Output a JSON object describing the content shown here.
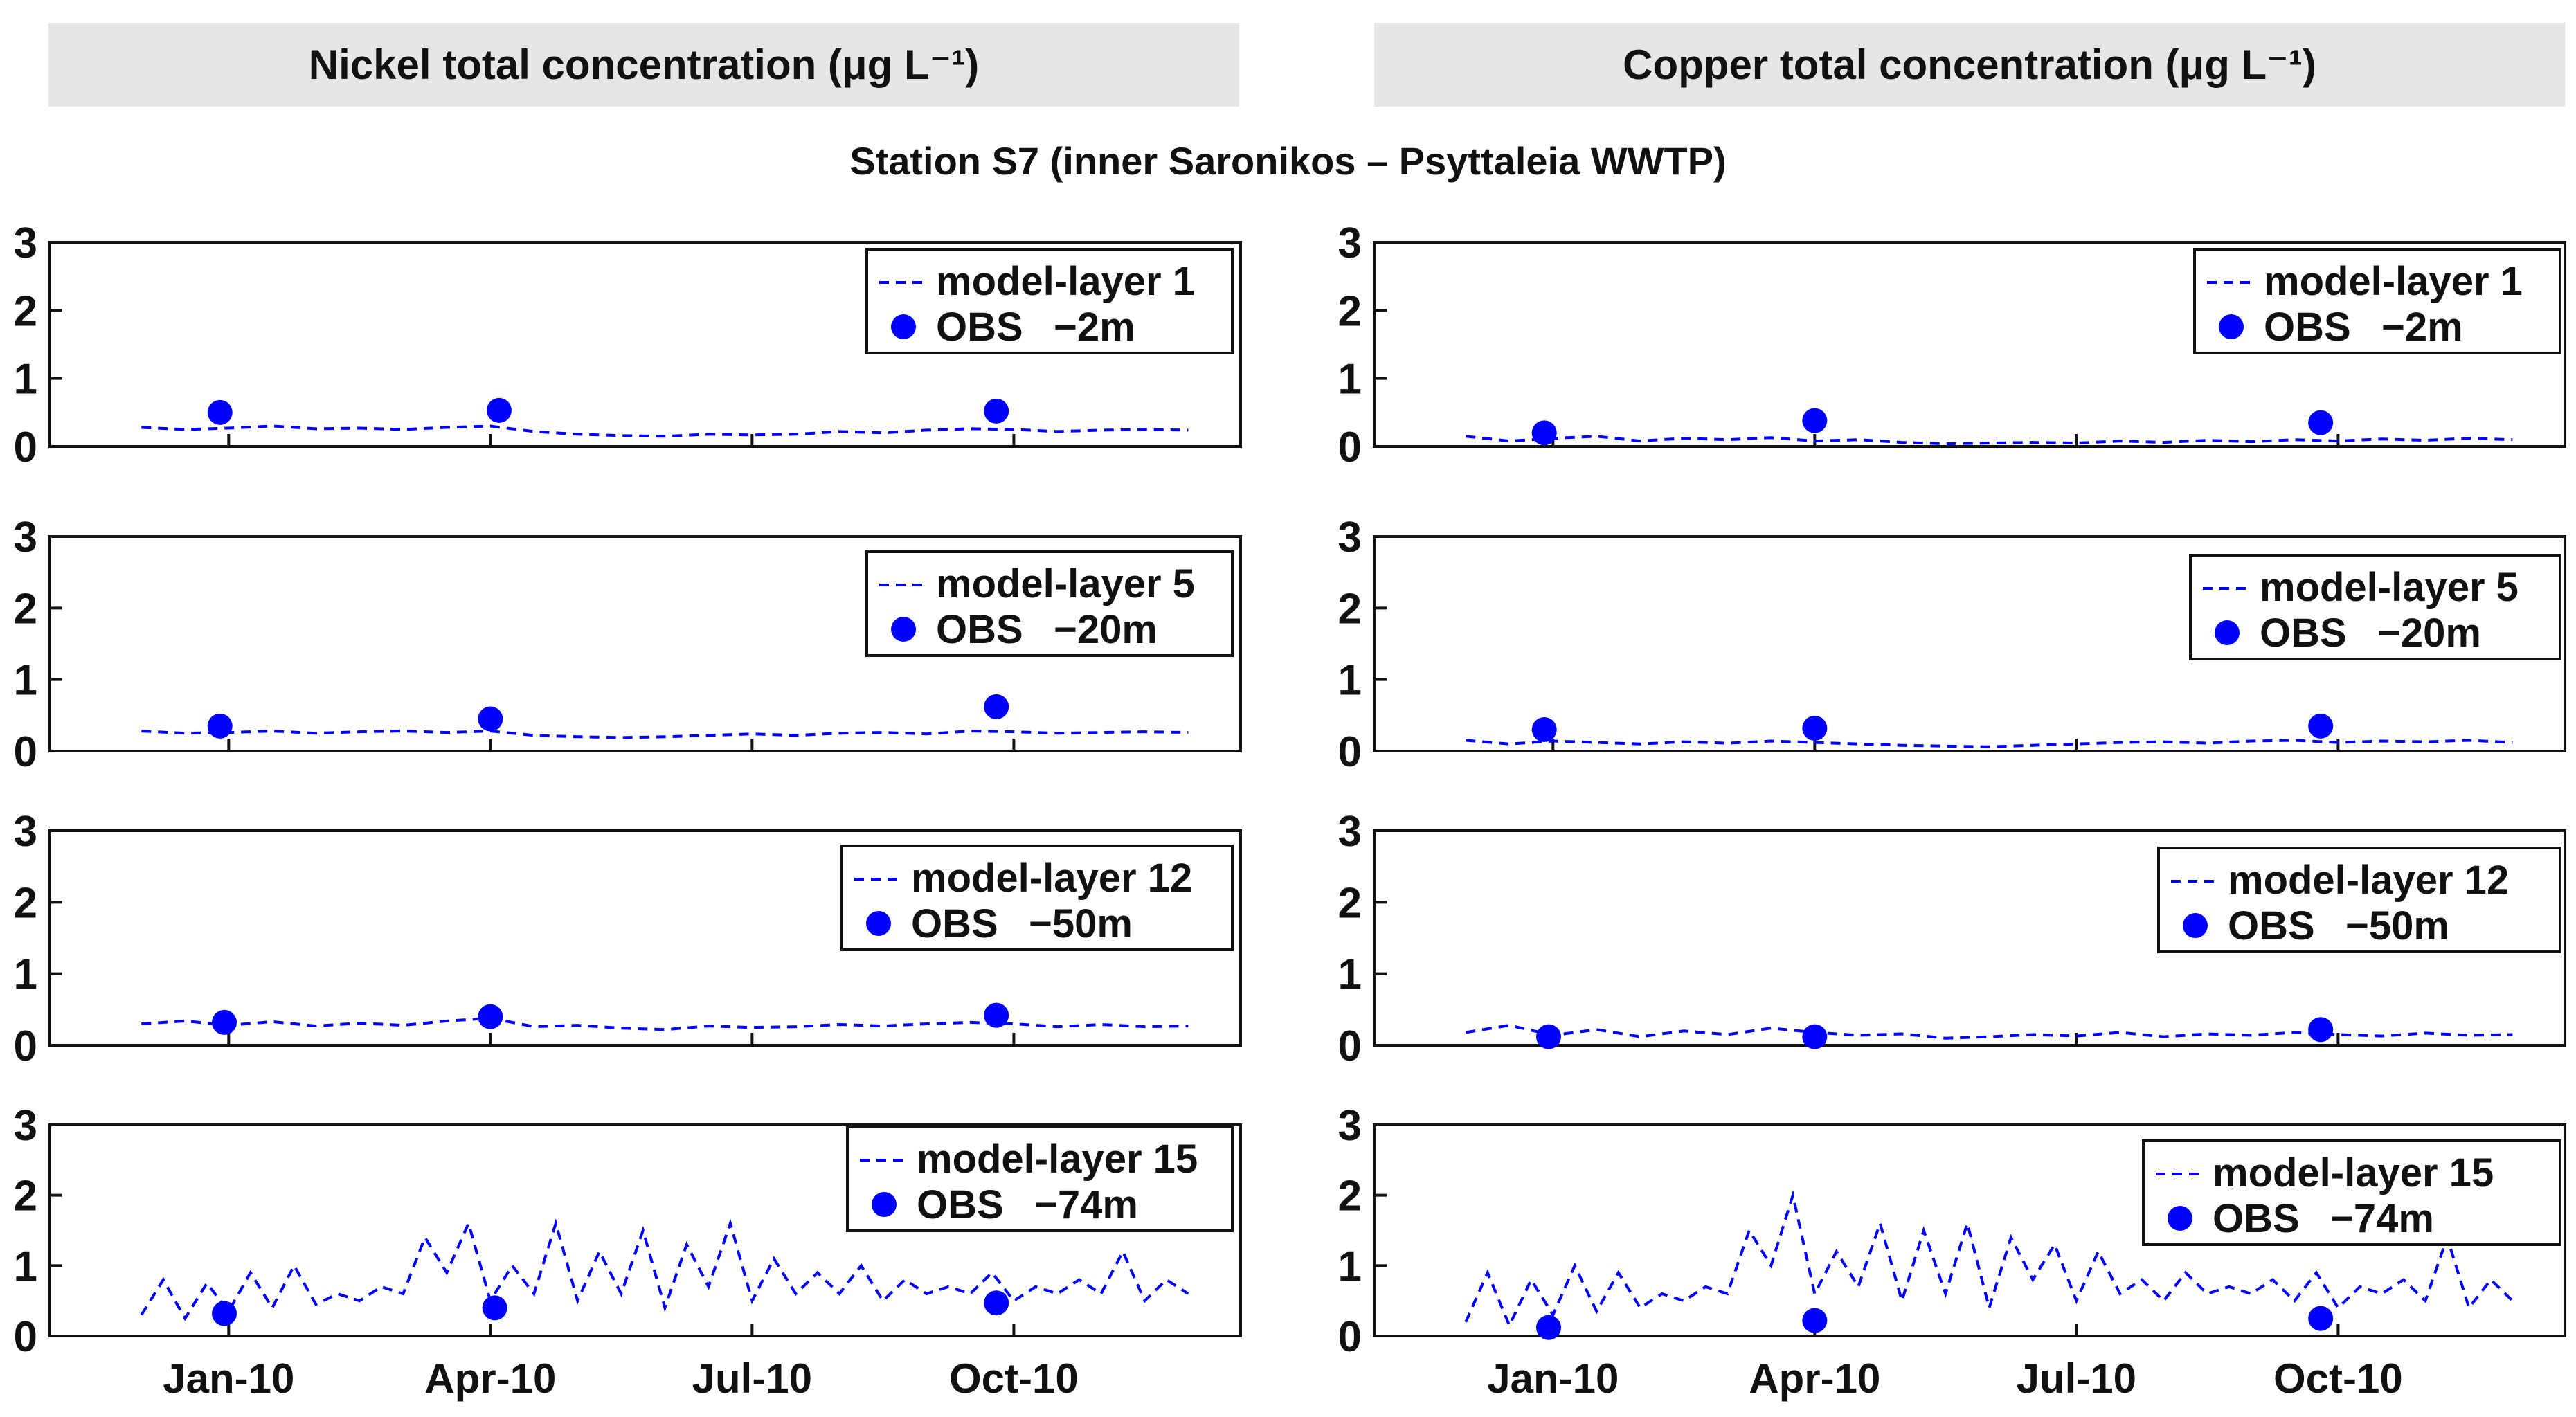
{
  "headers": {
    "left": "Nickel total concentration (μg L⁻¹)",
    "right": "Copper total concentration (μg L⁻¹)"
  },
  "station_title": "Station S7 (inner Saronikos – Psyttaleia WWTP)",
  "colors": {
    "series": "#0000ff",
    "axis": "#111111",
    "header_bg": "#e6e6e6"
  },
  "chart_data": [
    {
      "type": "line",
      "title": "Nickel – model-layer 1",
      "metal": "Nickel",
      "ylim": [
        0,
        3
      ],
      "yticks": [
        0,
        1,
        2,
        3
      ],
      "xlim": [
        -2.05,
        11.6
      ],
      "xticks": [
        0,
        3,
        6,
        9
      ],
      "xticklabels": [
        "Jan-10",
        "Apr-10",
        "Jul-10",
        "Oct-10"
      ],
      "legend": {
        "position": "top-right",
        "line_label": "model-layer 1",
        "obs_label": "OBS",
        "obs_depth": "−2m"
      },
      "model": {
        "x": [
          -1.0,
          -0.5,
          0.0,
          0.5,
          1.0,
          1.5,
          2.0,
          2.5,
          3.0,
          3.5,
          4.0,
          4.5,
          5.0,
          5.5,
          6.0,
          6.5,
          7.0,
          7.5,
          8.0,
          8.5,
          9.0,
          9.5,
          10.0,
          10.5,
          11.0
        ],
        "y": [
          0.28,
          0.25,
          0.27,
          0.3,
          0.26,
          0.27,
          0.25,
          0.28,
          0.3,
          0.22,
          0.18,
          0.16,
          0.15,
          0.18,
          0.17,
          0.18,
          0.22,
          0.2,
          0.24,
          0.26,
          0.25,
          0.22,
          0.24,
          0.25,
          0.24
        ]
      },
      "observations": {
        "x": [
          -0.1,
          3.1,
          8.8
        ],
        "y": [
          0.5,
          0.53,
          0.52
        ]
      }
    },
    {
      "type": "line",
      "title": "Nickel – model-layer 5",
      "metal": "Nickel",
      "ylim": [
        0,
        3
      ],
      "yticks": [
        0,
        1,
        2,
        3
      ],
      "xlim": [
        -2.05,
        11.6
      ],
      "xticks": [
        0,
        3,
        6,
        9
      ],
      "xticklabels": [
        "Jan-10",
        "Apr-10",
        "Jul-10",
        "Oct-10"
      ],
      "legend": {
        "position": "top-right",
        "line_label": "model-layer 5",
        "obs_label": "OBS",
        "obs_depth": "−20m"
      },
      "model": {
        "x": [
          -1.0,
          -0.5,
          0.0,
          0.5,
          1.0,
          1.5,
          2.0,
          2.5,
          3.0,
          3.5,
          4.0,
          4.5,
          5.0,
          5.5,
          6.0,
          6.5,
          7.0,
          7.5,
          8.0,
          8.5,
          9.0,
          9.5,
          10.0,
          10.5,
          11.0
        ],
        "y": [
          0.28,
          0.25,
          0.26,
          0.28,
          0.25,
          0.27,
          0.28,
          0.26,
          0.28,
          0.22,
          0.2,
          0.19,
          0.2,
          0.22,
          0.24,
          0.22,
          0.25,
          0.26,
          0.24,
          0.28,
          0.27,
          0.25,
          0.26,
          0.27,
          0.26
        ]
      },
      "observations": {
        "x": [
          -0.1,
          3.0,
          8.8
        ],
        "y": [
          0.35,
          0.45,
          0.62
        ]
      }
    },
    {
      "type": "line",
      "title": "Nickel – model-layer 12",
      "metal": "Nickel",
      "ylim": [
        0,
        3
      ],
      "yticks": [
        0,
        1,
        2,
        3
      ],
      "xlim": [
        -2.05,
        11.6
      ],
      "xticks": [
        0,
        3,
        6,
        9
      ],
      "xticklabels": [
        "Jan-10",
        "Apr-10",
        "Jul-10",
        "Oct-10"
      ],
      "legend": {
        "position": "top-right",
        "line_label": "model-layer 12",
        "obs_label": "OBS",
        "obs_depth": "−50m"
      },
      "model": {
        "x": [
          -1.0,
          -0.5,
          0.0,
          0.5,
          1.0,
          1.5,
          2.0,
          2.5,
          3.0,
          3.5,
          4.0,
          4.5,
          5.0,
          5.5,
          6.0,
          6.5,
          7.0,
          7.5,
          8.0,
          8.5,
          9.0,
          9.5,
          10.0,
          10.5,
          11.0
        ],
        "y": [
          0.3,
          0.34,
          0.28,
          0.33,
          0.27,
          0.31,
          0.28,
          0.34,
          0.38,
          0.26,
          0.28,
          0.24,
          0.22,
          0.27,
          0.25,
          0.26,
          0.29,
          0.27,
          0.3,
          0.32,
          0.3,
          0.26,
          0.29,
          0.26,
          0.27
        ]
      },
      "observations": {
        "x": [
          -0.05,
          3.0,
          8.8
        ],
        "y": [
          0.32,
          0.4,
          0.42
        ]
      }
    },
    {
      "type": "line",
      "title": "Nickel – model-layer 15",
      "metal": "Nickel",
      "ylim": [
        0,
        3
      ],
      "yticks": [
        0,
        1,
        2,
        3
      ],
      "xlim": [
        -2.05,
        11.6
      ],
      "xticks": [
        0,
        3,
        6,
        9
      ],
      "xticklabels": [
        "Jan-10",
        "Apr-10",
        "Jul-10",
        "Oct-10"
      ],
      "legend": {
        "position": "top-right",
        "line_label": "model-layer 15",
        "obs_label": "OBS",
        "obs_depth": "−74m"
      },
      "model": {
        "x": [
          -1.0,
          -0.75,
          -0.5,
          -0.25,
          0.0,
          0.25,
          0.5,
          0.75,
          1.0,
          1.25,
          1.5,
          1.75,
          2.0,
          2.25,
          2.5,
          2.75,
          3.0,
          3.25,
          3.5,
          3.75,
          4.0,
          4.25,
          4.5,
          4.75,
          5.0,
          5.25,
          5.5,
          5.75,
          6.0,
          6.25,
          6.5,
          6.75,
          7.0,
          7.25,
          7.5,
          7.75,
          8.0,
          8.25,
          8.5,
          8.75,
          9.0,
          9.25,
          9.5,
          9.75,
          10.0,
          10.25,
          10.5,
          10.75,
          11.0
        ],
        "y": [
          0.3,
          0.8,
          0.25,
          0.75,
          0.35,
          0.9,
          0.4,
          1.0,
          0.45,
          0.6,
          0.5,
          0.7,
          0.6,
          1.4,
          0.9,
          1.6,
          0.5,
          1.0,
          0.6,
          1.6,
          0.5,
          1.2,
          0.6,
          1.5,
          0.4,
          1.3,
          0.7,
          1.6,
          0.5,
          1.1,
          0.6,
          0.9,
          0.6,
          1.0,
          0.5,
          0.8,
          0.6,
          0.7,
          0.6,
          0.9,
          0.5,
          0.7,
          0.6,
          0.8,
          0.6,
          1.2,
          0.5,
          0.8,
          0.6
        ]
      },
      "observations": {
        "x": [
          -0.05,
          3.05,
          8.8
        ],
        "y": [
          0.32,
          0.4,
          0.47
        ]
      }
    },
    {
      "type": "line",
      "title": "Copper – model-layer 1",
      "metal": "Copper",
      "ylim": [
        0,
        3
      ],
      "yticks": [
        0,
        1,
        2,
        3
      ],
      "xlim": [
        -2.05,
        11.6
      ],
      "xticks": [
        0,
        3,
        6,
        9
      ],
      "xticklabels": [
        "Jan-10",
        "Apr-10",
        "Jul-10",
        "Oct-10"
      ],
      "legend": {
        "position": "top-right",
        "line_label": "model-layer 1",
        "obs_label": "OBS",
        "obs_depth": "−2m"
      },
      "model": {
        "x": [
          -1.0,
          -0.5,
          0.0,
          0.5,
          1.0,
          1.5,
          2.0,
          2.5,
          3.0,
          3.5,
          4.0,
          4.5,
          5.0,
          5.5,
          6.0,
          6.5,
          7.0,
          7.5,
          8.0,
          8.5,
          9.0,
          9.5,
          10.0,
          10.5,
          11.0
        ],
        "y": [
          0.15,
          0.08,
          0.12,
          0.15,
          0.08,
          0.12,
          0.1,
          0.13,
          0.08,
          0.1,
          0.06,
          0.04,
          0.05,
          0.06,
          0.05,
          0.08,
          0.06,
          0.09,
          0.07,
          0.1,
          0.08,
          0.11,
          0.09,
          0.12,
          0.1
        ]
      },
      "observations": {
        "x": [
          -0.1,
          3.0,
          8.8
        ],
        "y": [
          0.2,
          0.38,
          0.35
        ]
      }
    },
    {
      "type": "line",
      "title": "Copper – model-layer 5",
      "metal": "Copper",
      "ylim": [
        0,
        3
      ],
      "yticks": [
        0,
        1,
        2,
        3
      ],
      "xlim": [
        -2.05,
        11.6
      ],
      "xticks": [
        0,
        3,
        6,
        9
      ],
      "xticklabels": [
        "Jan-10",
        "Apr-10",
        "Jul-10",
        "Oct-10"
      ],
      "legend": {
        "position": "top-right",
        "line_label": "model-layer 5",
        "obs_label": "OBS",
        "obs_depth": "−20m"
      },
      "model": {
        "x": [
          -1.0,
          -0.5,
          0.0,
          0.5,
          1.0,
          1.5,
          2.0,
          2.5,
          3.0,
          3.5,
          4.0,
          4.5,
          5.0,
          5.5,
          6.0,
          6.5,
          7.0,
          7.5,
          8.0,
          8.5,
          9.0,
          9.5,
          10.0,
          10.5,
          11.0
        ],
        "y": [
          0.15,
          0.1,
          0.14,
          0.12,
          0.1,
          0.13,
          0.11,
          0.14,
          0.12,
          0.1,
          0.08,
          0.07,
          0.06,
          0.08,
          0.1,
          0.12,
          0.13,
          0.11,
          0.14,
          0.15,
          0.12,
          0.14,
          0.13,
          0.15,
          0.12
        ]
      },
      "observations": {
        "x": [
          -0.1,
          3.0,
          8.8
        ],
        "y": [
          0.3,
          0.32,
          0.35
        ]
      }
    },
    {
      "type": "line",
      "title": "Copper – model-layer 12",
      "metal": "Copper",
      "ylim": [
        0,
        3
      ],
      "yticks": [
        0,
        1,
        2,
        3
      ],
      "xlim": [
        -2.05,
        11.6
      ],
      "xticks": [
        0,
        3,
        6,
        9
      ],
      "xticklabels": [
        "Jan-10",
        "Apr-10",
        "Jul-10",
        "Oct-10"
      ],
      "legend": {
        "position": "top-right",
        "line_label": "model-layer 12",
        "obs_label": "OBS",
        "obs_depth": "−50m"
      },
      "model": {
        "x": [
          -1.0,
          -0.5,
          0.0,
          0.5,
          1.0,
          1.5,
          2.0,
          2.5,
          3.0,
          3.5,
          4.0,
          4.5,
          5.0,
          5.5,
          6.0,
          6.5,
          7.0,
          7.5,
          8.0,
          8.5,
          9.0,
          9.5,
          10.0,
          10.5,
          11.0
        ],
        "y": [
          0.18,
          0.28,
          0.14,
          0.22,
          0.12,
          0.2,
          0.15,
          0.24,
          0.18,
          0.14,
          0.16,
          0.1,
          0.12,
          0.15,
          0.13,
          0.18,
          0.12,
          0.16,
          0.14,
          0.18,
          0.15,
          0.13,
          0.17,
          0.14,
          0.15
        ]
      },
      "observations": {
        "x": [
          -0.05,
          3.0,
          8.8
        ],
        "y": [
          0.12,
          0.12,
          0.22
        ]
      }
    },
    {
      "type": "line",
      "title": "Copper – model-layer 15",
      "metal": "Copper",
      "ylim": [
        0,
        3
      ],
      "yticks": [
        0,
        1,
        2,
        3
      ],
      "xlim": [
        -2.05,
        11.6
      ],
      "xticks": [
        0,
        3,
        6,
        9
      ],
      "xticklabels": [
        "Jan-10",
        "Apr-10",
        "Jul-10",
        "Oct-10"
      ],
      "legend": {
        "position": "top-right",
        "line_label": "model-layer 15",
        "obs_label": "OBS",
        "obs_depth": "−74m"
      },
      "model": {
        "x": [
          -1.0,
          -0.75,
          -0.5,
          -0.25,
          0.0,
          0.25,
          0.5,
          0.75,
          1.0,
          1.25,
          1.5,
          1.75,
          2.0,
          2.25,
          2.5,
          2.75,
          3.0,
          3.25,
          3.5,
          3.75,
          4.0,
          4.25,
          4.5,
          4.75,
          5.0,
          5.25,
          5.5,
          5.75,
          6.0,
          6.25,
          6.5,
          6.75,
          7.0,
          7.25,
          7.5,
          7.75,
          8.0,
          8.25,
          8.5,
          8.75,
          9.0,
          9.25,
          9.5,
          9.75,
          10.0,
          10.25,
          10.5,
          10.75,
          11.0
        ],
        "y": [
          0.2,
          0.9,
          0.15,
          0.8,
          0.3,
          1.0,
          0.35,
          0.9,
          0.4,
          0.6,
          0.5,
          0.7,
          0.6,
          1.5,
          1.0,
          2.0,
          0.6,
          1.2,
          0.7,
          1.6,
          0.5,
          1.5,
          0.6,
          1.6,
          0.4,
          1.4,
          0.8,
          1.3,
          0.5,
          1.2,
          0.6,
          0.8,
          0.5,
          0.9,
          0.6,
          0.7,
          0.6,
          0.8,
          0.5,
          0.9,
          0.4,
          0.7,
          0.6,
          0.8,
          0.5,
          1.4,
          0.4,
          0.8,
          0.5
        ]
      },
      "observations": {
        "x": [
          -0.05,
          3.0,
          8.8
        ],
        "y": [
          0.12,
          0.22,
          0.25
        ]
      }
    }
  ]
}
